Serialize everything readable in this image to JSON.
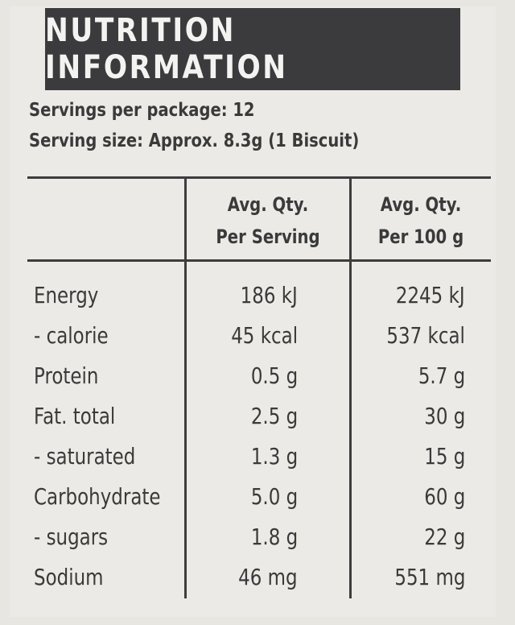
{
  "title": "NUTRITION INFORMATION",
  "servings_per_package": "Servings per package: 12",
  "serving_size": "Serving size: Approx. 8.3g (1 Biscuit)",
  "columns": {
    "per_serving": [
      "Avg. Qty.",
      "Per Serving"
    ],
    "per_100g": [
      "Avg. Qty.",
      "Per 100 g"
    ]
  },
  "rows": [
    {
      "name": "Energy",
      "per_serving": "186 kJ",
      "per_100g": "2245 kJ"
    },
    {
      "name": "- calorie",
      "per_serving": "45 kcal",
      "per_100g": "537 kcal"
    },
    {
      "name": "Protein",
      "per_serving": "0.5 g",
      "per_100g": "5.7 g"
    },
    {
      "name": "Fat. total",
      "per_serving": "2.5 g",
      "per_100g": "30 g"
    },
    {
      "name": "- saturated",
      "per_serving": "1.3 g",
      "per_100g": "15 g"
    },
    {
      "name": "Carbohydrate",
      "per_serving": "5.0 g",
      "per_100g": "60 g"
    },
    {
      "name": "- sugars",
      "per_serving": "1.8 g",
      "per_100g": "22 g"
    },
    {
      "name": "Sodium",
      "per_serving": "46 mg",
      "per_100g": "551 mg"
    }
  ]
}
